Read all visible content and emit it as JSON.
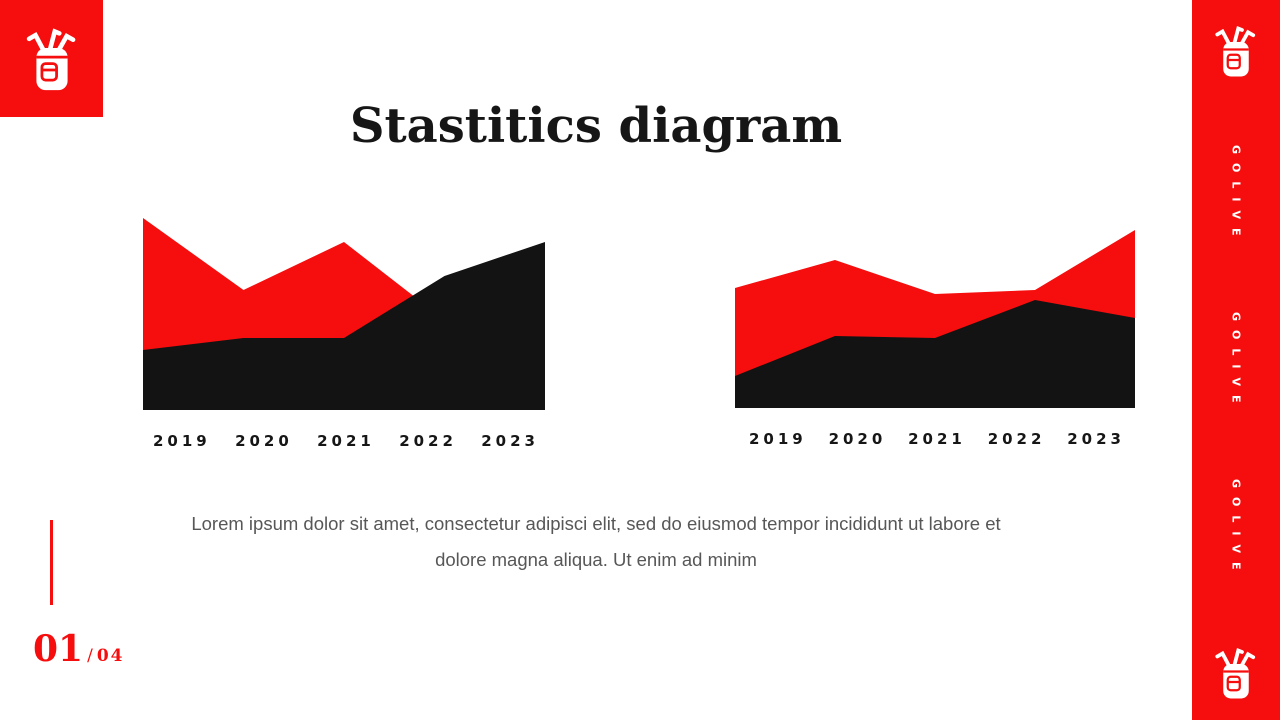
{
  "slide": {
    "title": "Stastitics diagram",
    "body_lines": [
      "Lorem ipsum dolor sit amet, consectetur adipisci elit, sed do eiusmod tempor incididunt ut labore et",
      "dolore magna aliqua. Ut enim ad minim"
    ],
    "page": {
      "current": "01",
      "separator": "/",
      "total": "04"
    }
  },
  "sidebar": {
    "brand": "GOLIVE",
    "icon": "golf-bag-icon"
  },
  "colors": {
    "accent_red": "#f60d0d",
    "chart_black": "#131313",
    "ink": "#161616",
    "body_gray": "#575757"
  },
  "chart_data": [
    {
      "type": "area",
      "title": "",
      "xlabel": "",
      "ylabel": "",
      "categories": [
        "2019",
        "2020",
        "2021",
        "2022",
        "2023"
      ],
      "series": [
        {
          "name": "red-area",
          "color": "#f60d0d",
          "values": [
            96,
            60,
            84,
            45,
            25
          ]
        },
        {
          "name": "black-area",
          "color": "#131313",
          "values": [
            30,
            36,
            36,
            67,
            84
          ]
        }
      ],
      "ylim": [
        0,
        100
      ],
      "grid": false,
      "legend": "none",
      "note": "stacked-looking overlapping areas; black drawn over red; values are % of plot height"
    },
    {
      "type": "area",
      "title": "",
      "xlabel": "",
      "ylabel": "",
      "categories": [
        "2019",
        "2020",
        "2021",
        "2022",
        "2023"
      ],
      "series": [
        {
          "name": "red-area",
          "color": "#f60d0d",
          "values": [
            60,
            74,
            57,
            59,
            89
          ]
        },
        {
          "name": "black-area",
          "color": "#131313",
          "values": [
            16,
            36,
            35,
            54,
            45
          ]
        }
      ],
      "ylim": [
        0,
        100
      ],
      "grid": false,
      "legend": "none",
      "note": "overlapping areas; black drawn over red; values are % of plot height"
    }
  ]
}
